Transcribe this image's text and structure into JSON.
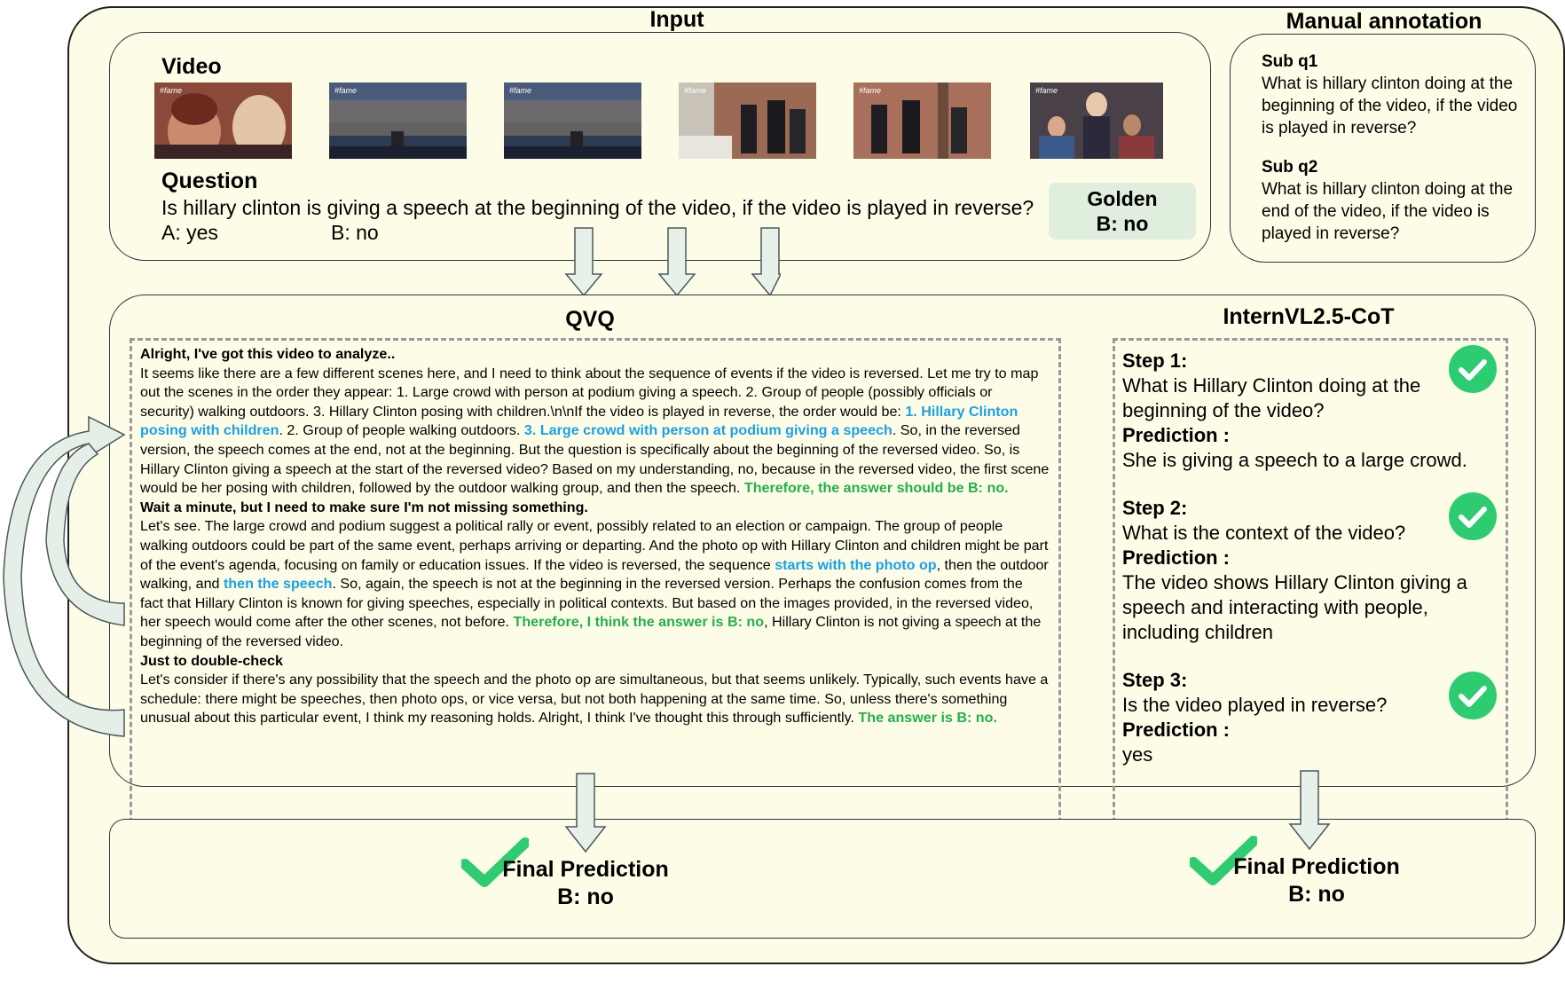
{
  "headers": {
    "input": "Input",
    "manual": "Manual annotation"
  },
  "video": {
    "label": "Video",
    "frame_tag": "#fame"
  },
  "question": {
    "label": "Question",
    "text": "Is hillary clinton is giving a speech at the beginning of the video, if the video is played in reverse?",
    "option_a": "A: yes",
    "option_b": "B: no"
  },
  "golden": {
    "label": "Golden",
    "value": "B: no"
  },
  "manual_annotation": {
    "q1_label": "Sub q1",
    "q1_text": "What is hillary clinton doing at the beginning of the video, if the video is played in reverse?",
    "q2_label": "Sub q2",
    "q2_text": "What is hillary clinton doing at the end of the video, if the video is played in reverse?"
  },
  "qvq": {
    "title": "QVQ",
    "p1_head": "Alright, I've got this video to analyze..",
    "p1_a": "It seems like there are a few different scenes here, and I need to think about the sequence of events if the video is reversed. Let me try to map out the scenes in the order they appear: 1. Large crowd with person at podium giving a speech. 2. Group of people (possibly officials or security) walking outdoors. 3. Hillary Clinton posing with children.\\n\\nIf the video is played in reverse, the order would be: ",
    "p1_blue1": "1. Hillary Clinton posing with children",
    "p1_b": ". 2. Group of people walking outdoors. ",
    "p1_blue2": "3. Large crowd with person at podium giving a speech",
    "p1_c": ". So, in the reversed version, the speech comes at the end, not at the beginning. But the question is specifically about the beginning of the reversed video. So, is Hillary Clinton giving a speech at the start of the reversed video? Based on my understanding, no, because in the reversed video, the first scene would be her posing with children, followed by the outdoor walking group, and then the speech. ",
    "p1_green": "Therefore, the answer should be B: no.",
    "p2_head": "Wait a minute, but I need to make sure I'm not missing something.",
    "p2_a": "Let's see. The large crowd and podium suggest a political rally or event, possibly related to an election or campaign. The group of people walking outdoors could be part of the same event, perhaps arriving or departing. And the photo op with Hillary Clinton and children might be part of the event's agenda, focusing on family or education issues. If the video is reversed, the sequence ",
    "p2_blue1": "starts with the photo op",
    "p2_b": ", then the outdoor walking, and ",
    "p2_blue2": "then the speech",
    "p2_c": ". So, again, the speech is not at the beginning in the reversed version. Perhaps the confusion comes from the fact that Hillary Clinton is known for giving speeches, especially in political contexts. But based on the images provided, in the reversed video, her speech would come after the other scenes, not before. ",
    "p2_green": "Therefore, I think the answer is B: no",
    "p2_d": ", Hillary Clinton is not giving a speech at the beginning of the reversed video.",
    "p3_head": "Just to double-check",
    "p3_a": "Let's consider if there's any possibility that the speech and the photo op are simultaneous, but that seems unlikely. Typically, such events have a schedule: there might be speeches, then photo ops, or vice versa, but not both happening at the same time. So, unless there's something unusual about this particular event, I think my reasoning holds. Alright, I think I've thought this through sufficiently. ",
    "p3_green": "The answer is B: no."
  },
  "internvl": {
    "title": "InternVL2.5-CoT",
    "prediction_label": "Prediction :",
    "steps": [
      {
        "label": "Step 1:",
        "question": "What is Hillary Clinton doing at the beginning of the video?",
        "prediction": "She is giving a speech to a large crowd."
      },
      {
        "label": "Step 2:",
        "question": "What is the context of the video?",
        "prediction": "The video shows Hillary Clinton giving a speech and interacting with people, including children"
      },
      {
        "label": "Step 3:",
        "question": "Is the video played in reverse?",
        "prediction": "yes"
      }
    ]
  },
  "final": {
    "qvq_label": "Final Prediction",
    "qvq_value": "B: no",
    "intern_label": "Final Prediction",
    "intern_value": "B: no"
  },
  "colors": {
    "panel_bg": "#fdfde7",
    "check_green": "#2ecc71",
    "highlight_blue": "#1aa0e8",
    "highlight_green": "#22b04a",
    "golden_bg": "#dfeedd",
    "arrow_fill": "#e8f0ea"
  }
}
